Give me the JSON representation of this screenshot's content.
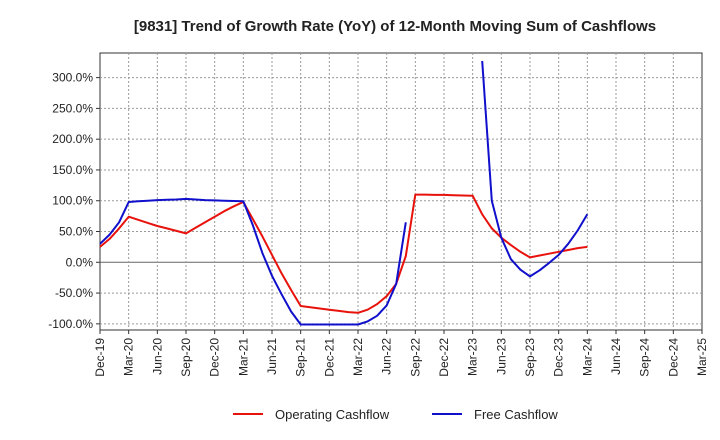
{
  "chart_data": {
    "type": "line",
    "title": "[9831]  Trend of Growth Rate (YoY) of 12-Month Moving Sum of Cashflows",
    "xlabel": "",
    "ylabel": "",
    "ylim": [
      -110,
      340
    ],
    "y_ticks": [
      {
        "value": 300,
        "label": "300.0%"
      },
      {
        "value": 250,
        "label": "250.0%"
      },
      {
        "value": 200,
        "label": "200.0%"
      },
      {
        "value": 150,
        "label": "150.0%"
      },
      {
        "value": 100,
        "label": "100.0%"
      },
      {
        "value": 50,
        "label": "50.0%"
      },
      {
        "value": 0,
        "label": "0.0%"
      },
      {
        "value": -50,
        "label": "-50.0%"
      },
      {
        "value": -100,
        "label": "-100.0%"
      }
    ],
    "x_ticks": [
      "Dec-19",
      "Mar-20",
      "Jun-20",
      "Sep-20",
      "Dec-20",
      "Mar-21",
      "Jun-21",
      "Sep-21",
      "Dec-21",
      "Mar-22",
      "Jun-22",
      "Sep-22",
      "Dec-22",
      "Mar-23",
      "Jun-23",
      "Sep-23",
      "Dec-23",
      "Mar-24",
      "Jun-24",
      "Sep-24",
      "Dec-24",
      "Mar-25"
    ],
    "grid": true,
    "legend_position": "bottom-center",
    "series": [
      {
        "name": "Operating Cashflow",
        "color": "#e8120c",
        "points": [
          [
            "Dec-19",
            25
          ],
          [
            "Jan-20",
            38
          ],
          [
            "Feb-20",
            55
          ],
          [
            "Mar-20",
            74
          ],
          [
            "Apr-20",
            69
          ],
          [
            "May-20",
            64
          ],
          [
            "Jun-20",
            59
          ],
          [
            "Jul-20",
            55
          ],
          [
            "Aug-20",
            51
          ],
          [
            "Sep-20",
            47
          ],
          [
            "Oct-20",
            56
          ],
          [
            "Nov-20",
            65
          ],
          [
            "Dec-20",
            74
          ],
          [
            "Jan-21",
            83
          ],
          [
            "Feb-21",
            91
          ],
          [
            "Mar-21",
            98
          ],
          [
            "Apr-21",
            70
          ],
          [
            "May-21",
            42
          ],
          [
            "Jun-21",
            12
          ],
          [
            "Jul-21",
            -18
          ],
          [
            "Aug-21",
            -45
          ],
          [
            "Sep-21",
            -71
          ],
          [
            "Oct-21",
            -73
          ],
          [
            "Nov-21",
            -75
          ],
          [
            "Dec-21",
            -77
          ],
          [
            "Jan-22",
            -79
          ],
          [
            "Feb-22",
            -81
          ],
          [
            "Mar-22",
            -82
          ],
          [
            "Apr-22",
            -77
          ],
          [
            "May-22",
            -68
          ],
          [
            "Jun-22",
            -55
          ],
          [
            "Jul-22",
            -35
          ],
          [
            "Aug-22",
            10
          ],
          [
            "Sep-22",
            110
          ],
          [
            "Oct-22",
            110
          ],
          [
            "Nov-22",
            109.5
          ],
          [
            "Dec-22",
            109.5
          ],
          [
            "Jan-23",
            109
          ],
          [
            "Feb-23",
            108.5
          ],
          [
            "Mar-23",
            108
          ],
          [
            "Apr-23",
            78
          ],
          [
            "May-23",
            55
          ],
          [
            "Jun-23",
            40
          ],
          [
            "Jul-23",
            28
          ],
          [
            "Aug-23",
            17
          ],
          [
            "Sep-23",
            8
          ],
          [
            "Oct-23",
            11
          ],
          [
            "Nov-23",
            14
          ],
          [
            "Dec-23",
            17
          ],
          [
            "Jan-24",
            20
          ],
          [
            "Feb-24",
            23
          ],
          [
            "Mar-24",
            25
          ]
        ]
      },
      {
        "name": "Free Cashflow",
        "color": "#1010cc",
        "points": [
          [
            "Dec-19",
            30
          ],
          [
            "Jan-20",
            45
          ],
          [
            "Feb-20",
            65
          ],
          [
            "Mar-20",
            98
          ],
          [
            "Apr-20",
            99
          ],
          [
            "May-20",
            100
          ],
          [
            "Jun-20",
            101
          ],
          [
            "Jul-20",
            101.5
          ],
          [
            "Aug-20",
            102
          ],
          [
            "Sep-20",
            103
          ],
          [
            "Oct-20",
            102
          ],
          [
            "Nov-20",
            101
          ],
          [
            "Dec-20",
            100.5
          ],
          [
            "Jan-21",
            100
          ],
          [
            "Feb-21",
            99.5
          ],
          [
            "Mar-21",
            99
          ],
          [
            "Apr-21",
            60
          ],
          [
            "May-21",
            15
          ],
          [
            "Jun-21",
            -22
          ],
          [
            "Jul-21",
            -52
          ],
          [
            "Aug-21",
            -80
          ],
          [
            "Sep-21",
            -101
          ],
          [
            "Oct-21",
            -101
          ],
          [
            "Nov-21",
            -101
          ],
          [
            "Dec-21",
            -101
          ],
          [
            "Jan-22",
            -101
          ],
          [
            "Feb-22",
            -101
          ],
          [
            "Mar-22",
            -101
          ],
          [
            "Apr-22",
            -96
          ],
          [
            "May-22",
            -87
          ],
          [
            "Jun-22",
            -70
          ],
          [
            "Jul-22",
            -35
          ],
          [
            "Aug-22",
            65
          ]
        ]
      },
      {
        "name": "Free Cashflow",
        "color": "#1010cc",
        "points": [
          [
            "Apr-23",
            327
          ],
          [
            "May-23",
            100
          ],
          [
            "Jun-23",
            40
          ],
          [
            "Jul-23",
            5
          ],
          [
            "Aug-23",
            -12
          ],
          [
            "Sep-23",
            -23
          ],
          [
            "Oct-23",
            -13
          ],
          [
            "Nov-23",
            -1
          ],
          [
            "Dec-23",
            12
          ],
          [
            "Jan-24",
            30
          ],
          [
            "Feb-24",
            52
          ],
          [
            "Mar-24",
            78
          ]
        ]
      }
    ],
    "legend": [
      {
        "name": "Operating Cashflow",
        "color": "#e8120c"
      },
      {
        "name": "Free Cashflow",
        "color": "#1010cc"
      }
    ]
  }
}
